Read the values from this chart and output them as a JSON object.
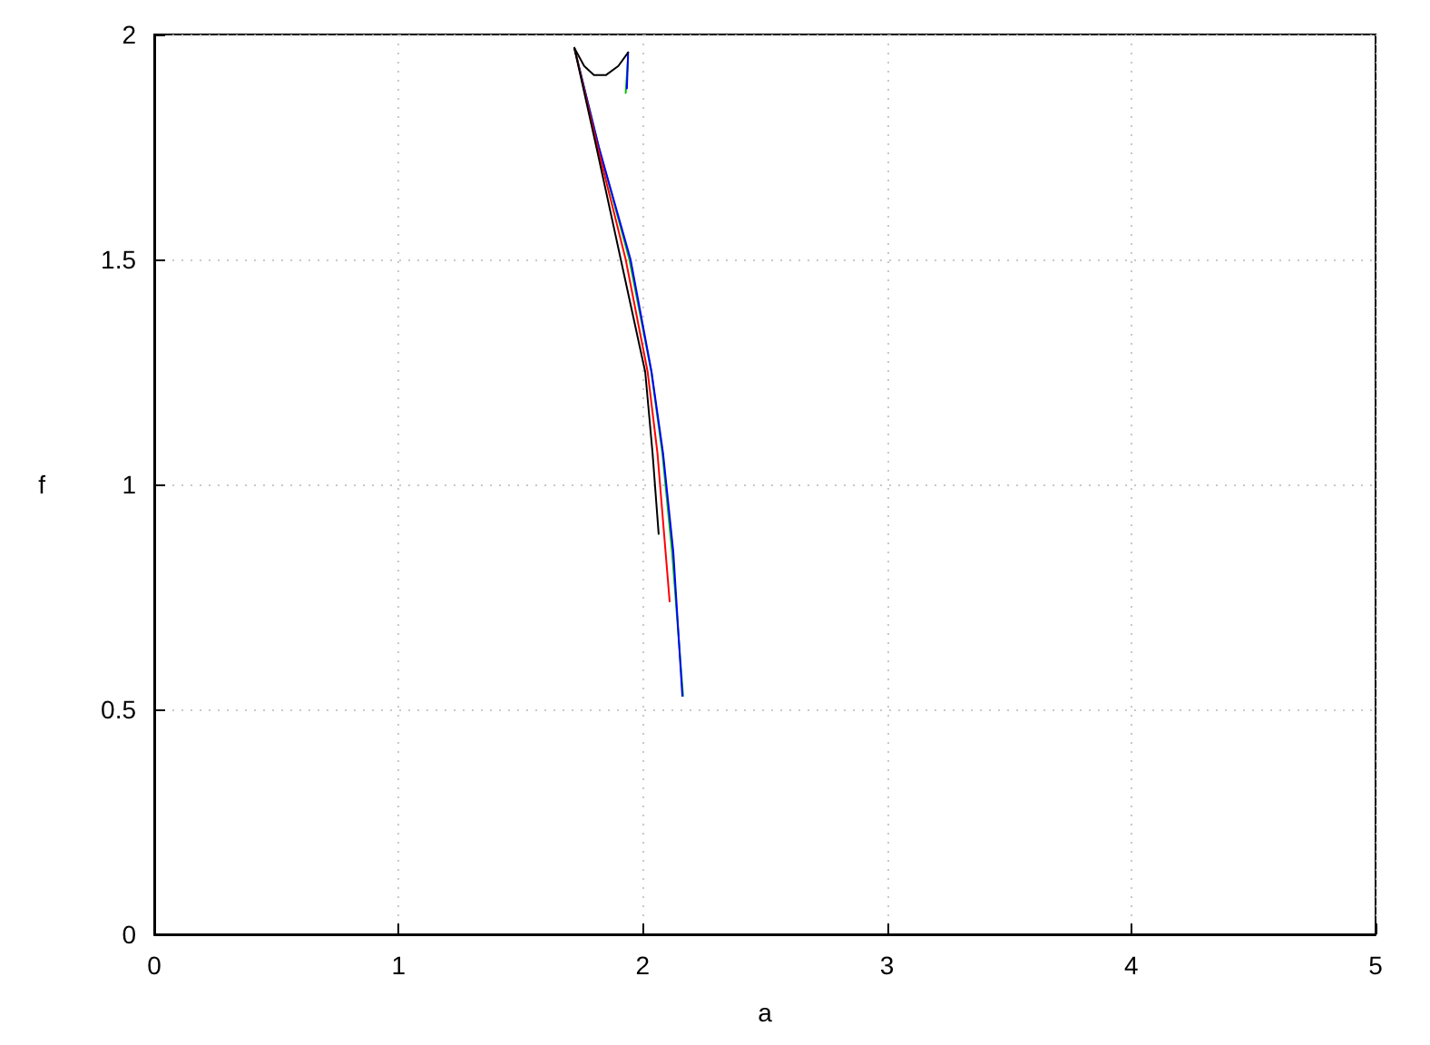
{
  "chart_data": {
    "type": "line",
    "xlabel": "a",
    "ylabel": "f",
    "xlim": [
      0,
      5
    ],
    "xticks": [
      0,
      1,
      2,
      3,
      4,
      5
    ],
    "ylim": [
      0,
      2
    ],
    "yticks": [
      0,
      0.5,
      1,
      1.5,
      2
    ],
    "grid": true,
    "marker": "none",
    "line_style": "solid",
    "series": [
      {
        "color": "#00c000",
        "x": [
          1.72,
          1.82,
          1.945,
          2.035,
          2.08,
          2.12,
          2.165
        ],
        "values": [
          1.97,
          1.75,
          1.5,
          1.25,
          1.07,
          0.85,
          0.53
        ]
      },
      {
        "color": "#00c000",
        "x": [
          1.94,
          1.93
        ],
        "values": [
          1.95,
          1.87
        ]
      },
      {
        "color": "#0000ff",
        "x": [
          1.72,
          1.82,
          1.95,
          2.036,
          2.083,
          2.125,
          2.162
        ],
        "values": [
          1.97,
          1.75,
          1.5,
          1.25,
          1.07,
          0.85,
          0.53
        ]
      },
      {
        "color": "#0000ff",
        "x": [
          1.94,
          1.935
        ],
        "values": [
          1.96,
          1.88
        ]
      },
      {
        "color": "#ff0000",
        "x": [
          1.72,
          1.815,
          1.93,
          2.02,
          2.06,
          2.11
        ],
        "values": [
          1.97,
          1.75,
          1.5,
          1.25,
          1.07,
          0.74
        ]
      },
      {
        "color": "#000000",
        "x": [
          1.72,
          1.81,
          1.91,
          2.01,
          2.04,
          2.065
        ],
        "values": [
          1.97,
          1.75,
          1.5,
          1.25,
          1.07,
          0.89
        ]
      },
      {
        "color": "#000000",
        "x": [
          1.72,
          1.76,
          1.8,
          1.85,
          1.9,
          1.94
        ],
        "values": [
          1.97,
          1.93,
          1.91,
          1.91,
          1.93,
          1.96
        ]
      }
    ]
  }
}
